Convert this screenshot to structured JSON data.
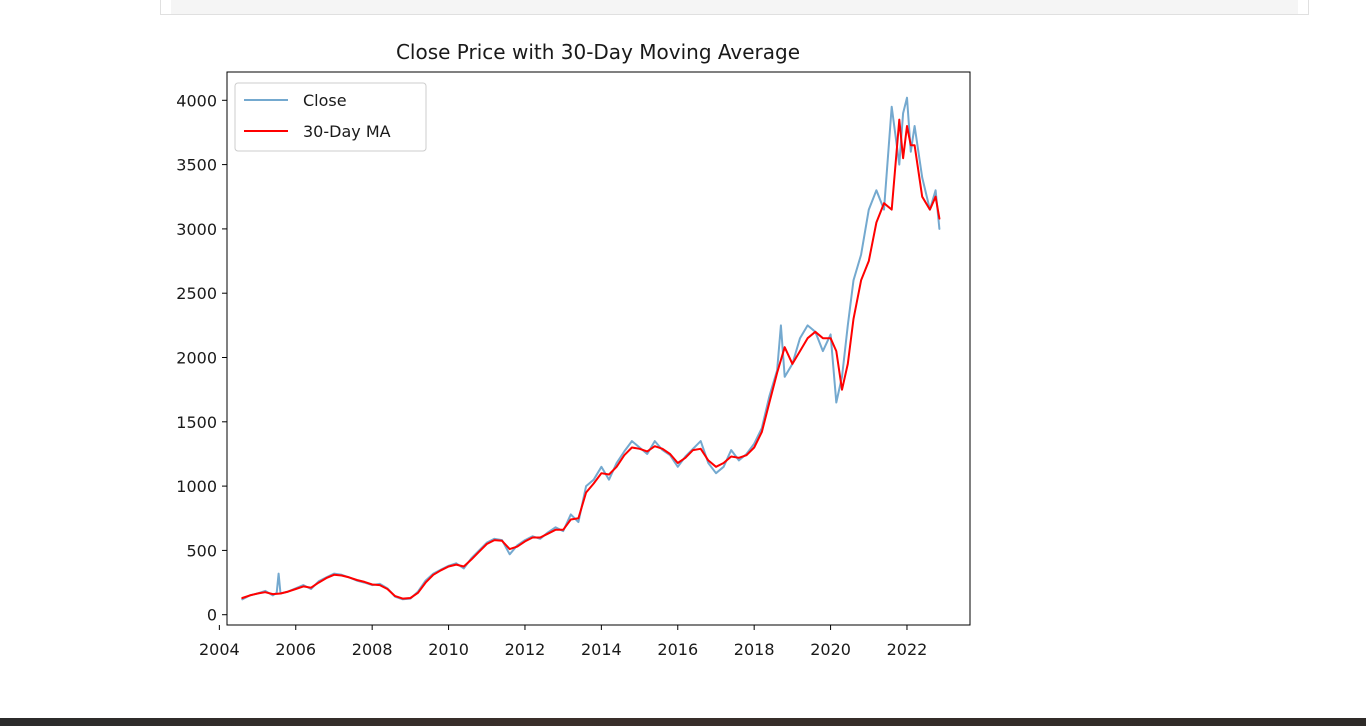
{
  "chart_data": {
    "type": "line",
    "title": "Close Price with 30-Day Moving Average",
    "xlabel": "",
    "ylabel": "",
    "xlim": [
      2004.2,
      2023.65
    ],
    "ylim": [
      -80,
      4220
    ],
    "x_ticks": [
      "2004",
      "2006",
      "2008",
      "2010",
      "2012",
      "2014",
      "2016",
      "2018",
      "2020",
      "2022"
    ],
    "y_ticks": [
      "0",
      "500",
      "1000",
      "1500",
      "2000",
      "2500",
      "3000",
      "3500",
      "4000"
    ],
    "grid": false,
    "legend_position": "upper-left",
    "colors": {
      "close": "#74a9cf",
      "ma": "#ff0000"
    },
    "series": [
      {
        "name": "Close",
        "x": [
          2004.6,
          2004.8,
          2005.0,
          2005.2,
          2005.4,
          2005.5,
          2005.55,
          2005.6,
          2005.8,
          2006.0,
          2006.2,
          2006.4,
          2006.6,
          2006.8,
          2007.0,
          2007.2,
          2007.4,
          2007.6,
          2007.8,
          2008.0,
          2008.2,
          2008.4,
          2008.6,
          2008.8,
          2009.0,
          2009.2,
          2009.4,
          2009.6,
          2009.8,
          2010.0,
          2010.2,
          2010.4,
          2010.6,
          2010.8,
          2011.0,
          2011.2,
          2011.4,
          2011.6,
          2011.8,
          2012.0,
          2012.2,
          2012.4,
          2012.6,
          2012.8,
          2013.0,
          2013.2,
          2013.4,
          2013.6,
          2013.8,
          2014.0,
          2014.2,
          2014.4,
          2014.6,
          2014.8,
          2015.0,
          2015.2,
          2015.4,
          2015.6,
          2015.8,
          2016.0,
          2016.2,
          2016.4,
          2016.6,
          2016.8,
          2017.0,
          2017.2,
          2017.4,
          2017.6,
          2017.8,
          2018.0,
          2018.2,
          2018.4,
          2018.6,
          2018.7,
          2018.8,
          2019.0,
          2019.2,
          2019.4,
          2019.6,
          2019.8,
          2020.0,
          2020.15,
          2020.3,
          2020.45,
          2020.6,
          2020.8,
          2021.0,
          2021.2,
          2021.4,
          2021.6,
          2021.8,
          2021.9,
          2022.0,
          2022.1,
          2022.2,
          2022.4,
          2022.6,
          2022.75,
          2022.85
        ],
        "values": [
          120,
          150,
          165,
          185,
          150,
          170,
          320,
          165,
          180,
          205,
          230,
          200,
          260,
          290,
          320,
          310,
          290,
          265,
          250,
          230,
          240,
          205,
          140,
          120,
          125,
          180,
          265,
          320,
          350,
          380,
          400,
          360,
          440,
          500,
          560,
          590,
          580,
          470,
          540,
          580,
          610,
          590,
          640,
          680,
          650,
          780,
          720,
          1000,
          1050,
          1150,
          1050,
          1180,
          1270,
          1350,
          1300,
          1250,
          1350,
          1280,
          1240,
          1150,
          1230,
          1290,
          1350,
          1180,
          1100,
          1150,
          1280,
          1200,
          1250,
          1330,
          1450,
          1700,
          1900,
          2250,
          1850,
          1950,
          2150,
          2250,
          2200,
          2050,
          2180,
          1650,
          1850,
          2250,
          2600,
          2800,
          3150,
          3300,
          3150,
          3950,
          3500,
          3900,
          4020,
          3600,
          3800,
          3400,
          3150,
          3300,
          3000
        ]
      },
      {
        "name": "30-Day MA",
        "x": [
          2004.6,
          2004.8,
          2005.0,
          2005.2,
          2005.4,
          2005.6,
          2005.8,
          2006.0,
          2006.2,
          2006.4,
          2006.6,
          2006.8,
          2007.0,
          2007.2,
          2007.4,
          2007.6,
          2007.8,
          2008.0,
          2008.2,
          2008.4,
          2008.6,
          2008.8,
          2009.0,
          2009.2,
          2009.4,
          2009.6,
          2009.8,
          2010.0,
          2010.2,
          2010.4,
          2010.6,
          2010.8,
          2011.0,
          2011.2,
          2011.4,
          2011.6,
          2011.8,
          2012.0,
          2012.2,
          2012.4,
          2012.6,
          2012.8,
          2013.0,
          2013.2,
          2013.4,
          2013.6,
          2013.8,
          2014.0,
          2014.2,
          2014.4,
          2014.6,
          2014.8,
          2015.0,
          2015.2,
          2015.4,
          2015.6,
          2015.8,
          2016.0,
          2016.2,
          2016.4,
          2016.6,
          2016.8,
          2017.0,
          2017.2,
          2017.4,
          2017.6,
          2017.8,
          2018.0,
          2018.2,
          2018.4,
          2018.6,
          2018.8,
          2019.0,
          2019.2,
          2019.4,
          2019.6,
          2019.8,
          2020.0,
          2020.15,
          2020.3,
          2020.45,
          2020.6,
          2020.8,
          2021.0,
          2021.2,
          2021.4,
          2021.6,
          2021.8,
          2021.9,
          2022.0,
          2022.1,
          2022.2,
          2022.4,
          2022.6,
          2022.75,
          2022.85
        ],
        "values": [
          130,
          150,
          165,
          175,
          160,
          165,
          180,
          200,
          220,
          210,
          250,
          285,
          310,
          305,
          290,
          270,
          255,
          235,
          230,
          200,
          145,
          125,
          130,
          170,
          250,
          310,
          345,
          375,
          390,
          375,
          430,
          490,
          550,
          580,
          575,
          510,
          530,
          570,
          600,
          600,
          630,
          660,
          660,
          740,
          750,
          950,
          1020,
          1100,
          1090,
          1150,
          1240,
          1300,
          1290,
          1270,
          1310,
          1290,
          1250,
          1180,
          1220,
          1280,
          1290,
          1200,
          1150,
          1180,
          1230,
          1220,
          1240,
          1300,
          1420,
          1650,
          1880,
          2080,
          1950,
          2050,
          2150,
          2200,
          2150,
          2150,
          2050,
          1750,
          1950,
          2300,
          2600,
          2750,
          3050,
          3200,
          3150,
          3850,
          3550,
          3800,
          3650,
          3650,
          3250,
          3150,
          3250,
          3080
        ]
      }
    ]
  }
}
